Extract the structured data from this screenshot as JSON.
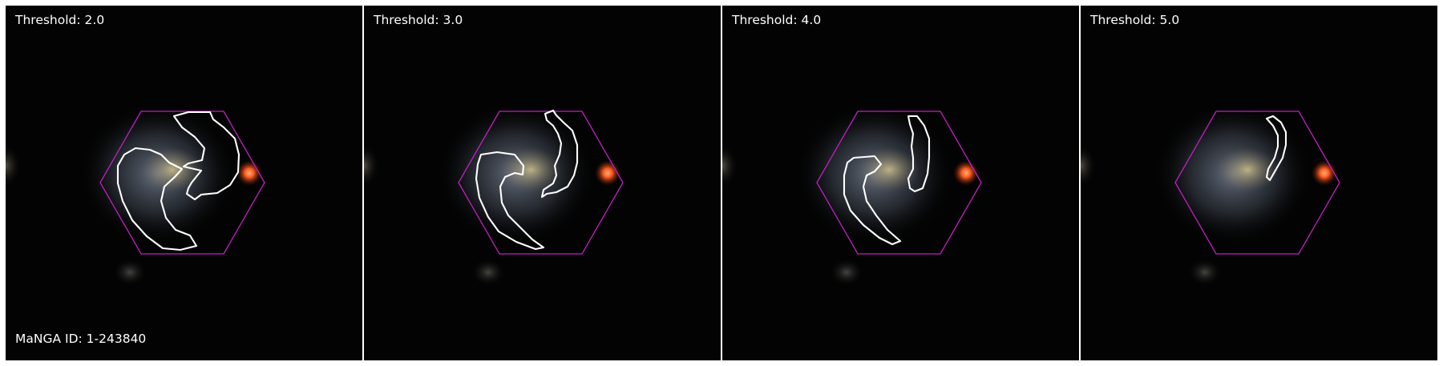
{
  "image": {
    "identifier_label": "MaNGA ID: 1-243840",
    "hexagon_color": "#c21ec2",
    "contour_color": "#ffffff",
    "background_color": "#030303"
  },
  "panels": [
    {
      "threshold_label": "Threshold: 2.0"
    },
    {
      "threshold_label": "Threshold: 3.0"
    },
    {
      "threshold_label": "Threshold: 4.0"
    },
    {
      "threshold_label": "Threshold: 5.0"
    }
  ]
}
